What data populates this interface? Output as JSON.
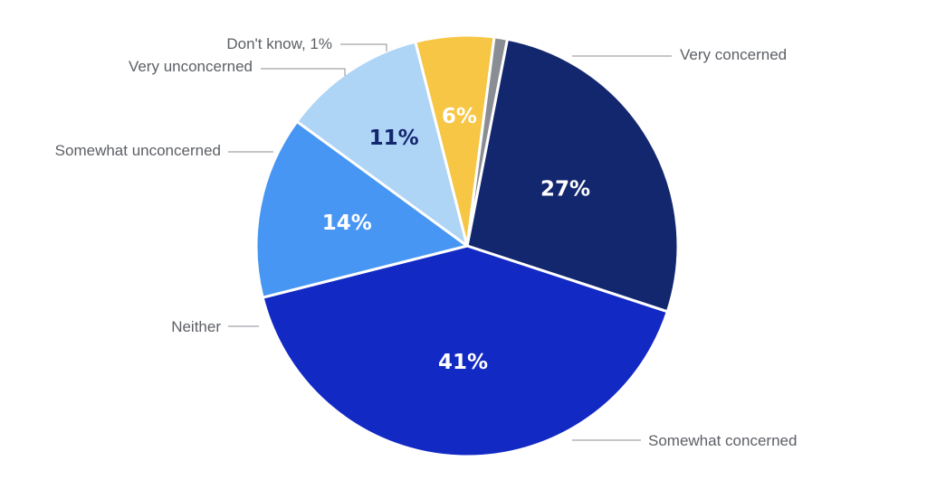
{
  "chart_data": {
    "type": "pie",
    "title": "",
    "start_angle_deg": 11,
    "direction": "clockwise",
    "slices": [
      {
        "category": "Very concerned",
        "value": 27,
        "value_label": "27%",
        "color": "#13276f",
        "label_color": "#ffffff"
      },
      {
        "category": "Somewhat concerned",
        "value": 41,
        "value_label": "41%",
        "color": "#1329c4",
        "label_color": "#ffffff"
      },
      {
        "category": "Neither",
        "value": 14,
        "value_label": "14%",
        "color": "#4896f3",
        "label_color": "#ffffff"
      },
      {
        "category": "Somewhat unconcerned",
        "value": 11,
        "value_label": "11%",
        "color": "#aed4f6",
        "label_color": "#13276f"
      },
      {
        "category": "Very unconcerned",
        "value": 6,
        "value_label": "6%",
        "color": "#f6c644",
        "label_color": "#ffffff"
      },
      {
        "category": "Don't know, 1%",
        "value": 1,
        "value_label": "",
        "color": "#8a8d93",
        "label_color": "#ffffff"
      }
    ],
    "slice_border_color": "#ffffff",
    "leader_color": "#8a8d93",
    "label_text_color": "#5d6066"
  }
}
